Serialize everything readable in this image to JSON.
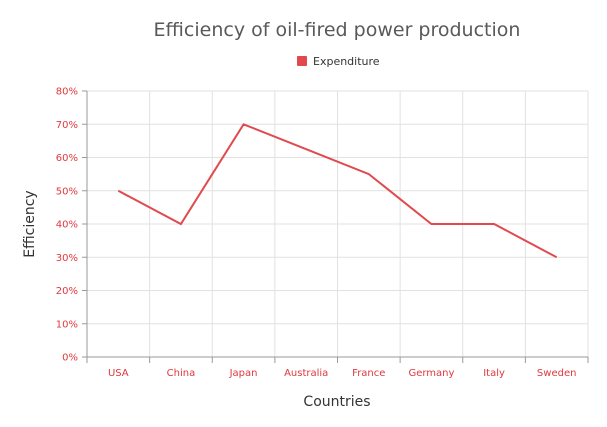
{
  "colors": {
    "series": "#e04a4f",
    "tick_label": "#e0383e",
    "grid": "#e1e1e1",
    "axis_line": "#9a9a9a",
    "title": "#595959"
  },
  "chart_data": {
    "type": "line",
    "title": "Efficiency of oil-fired power production",
    "xlabel": "Countries",
    "ylabel": "Efficiency",
    "categories": [
      "USA",
      "China",
      "Japan",
      "Australia",
      "France",
      "Germany",
      "Italy",
      "Sweden"
    ],
    "series": [
      {
        "name": "Expenditure",
        "values": [
          50,
          40,
          70,
          62.5,
          55,
          40,
          40,
          30
        ]
      }
    ],
    "ylim": [
      0,
      80
    ],
    "yticks": [
      "0%",
      "10%",
      "20%",
      "30%",
      "40%",
      "50%",
      "60%",
      "70%",
      "80%"
    ],
    "grid": true,
    "legend_position": "top-center"
  }
}
